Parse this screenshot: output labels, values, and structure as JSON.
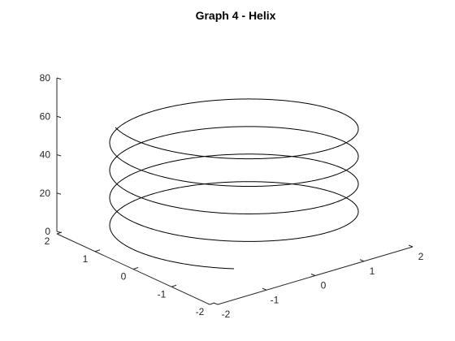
{
  "chart_data": {
    "type": "line",
    "projection": "3d",
    "title": "Graph 4 - Helix",
    "xlabel": "",
    "ylabel": "",
    "zlabel": "",
    "grid": false,
    "xlim": [
      -2,
      2
    ],
    "ylim": [
      -2,
      2
    ],
    "zlim": [
      0,
      80
    ],
    "x_ticks": [
      "-2",
      "-1",
      "0",
      "1",
      "2"
    ],
    "y_ticks": [
      "-2",
      "-1",
      "0",
      "1",
      "2"
    ],
    "z_ticks": [
      "0",
      "20",
      "40",
      "60",
      "80"
    ],
    "series": [
      {
        "parametric": {
          "x": "1.5*cos(t)",
          "y": "1.5*sin(t)",
          "z": "3*t"
        },
        "t_range": [
          0,
          26.4
        ],
        "color": "#000000"
      }
    ]
  }
}
